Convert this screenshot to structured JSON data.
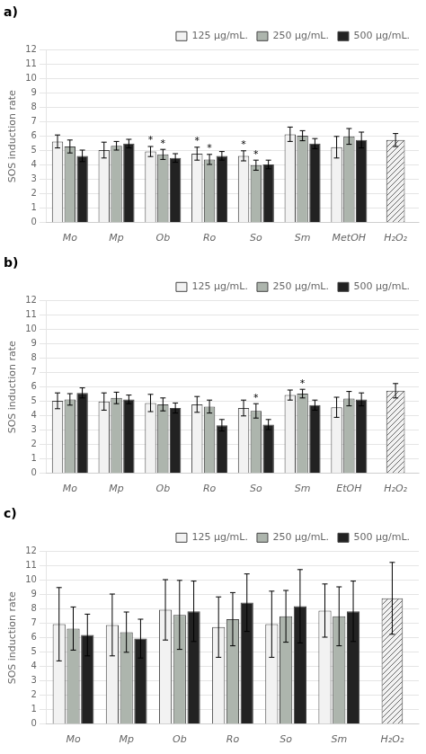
{
  "chart_data": [
    {
      "type": "bar",
      "title": "a)",
      "categories": [
        "Mo",
        "Mp",
        "Ob",
        "Ro",
        "So",
        "Sm",
        "MetOH",
        "H₂O₂"
      ],
      "series": [
        {
          "name": "125 μg/mL.",
          "color": "#f2f2f2",
          "values": [
            5.65,
            5.05,
            4.95,
            4.8,
            4.65,
            6.15,
            5.25,
            null
          ],
          "errors": [
            0.45,
            0.55,
            0.35,
            0.45,
            0.35,
            0.5,
            0.75,
            null
          ],
          "annotations": [
            null,
            null,
            "*",
            "*",
            "*",
            null,
            null,
            null
          ]
        },
        {
          "name": "250 μg/mL.",
          "color": "#adb5ad",
          "values": [
            5.3,
            5.35,
            4.75,
            4.4,
            4.0,
            6.05,
            6.0,
            null
          ],
          "errors": [
            0.45,
            0.3,
            0.35,
            0.35,
            0.35,
            0.35,
            0.55,
            null
          ],
          "annotations": [
            null,
            null,
            "*",
            "*",
            "*",
            null,
            null,
            null
          ]
        },
        {
          "name": "500 μg/mL.",
          "color": "#222222",
          "values": [
            4.65,
            5.5,
            4.5,
            4.65,
            4.05,
            5.5,
            5.75,
            null
          ],
          "errors": [
            0.4,
            0.3,
            0.3,
            0.3,
            0.3,
            0.35,
            0.55,
            null
          ]
        },
        {
          "color": "#f2f2f2",
          "values": [
            null,
            null,
            null,
            null,
            null,
            null,
            null,
            5.75
          ],
          "errors": [
            null,
            null,
            null,
            null,
            null,
            null,
            null,
            0.45
          ]
        }
      ],
      "ylabel": "SOS induction rate",
      "ylim": [
        0,
        12
      ],
      "yticks": [
        0,
        1,
        2,
        3,
        4,
        5,
        6,
        7,
        8,
        9,
        10,
        11,
        12
      ],
      "grid": true,
      "legend": "upper right"
    },
    {
      "type": "bar",
      "title": "b)",
      "categories": [
        "Mo",
        "Mp",
        "Ob",
        "Ro",
        "So",
        "Sm",
        "EtOH",
        "H₂O₂"
      ],
      "series": [
        {
          "name": "125 μg/mL.",
          "color": "#f2f2f2",
          "values": [
            5.05,
            5.0,
            4.9,
            4.8,
            4.55,
            5.45,
            4.6,
            null
          ],
          "errors": [
            0.55,
            0.6,
            0.6,
            0.55,
            0.55,
            0.35,
            0.7,
            null
          ]
        },
        {
          "name": "250 μg/mL.",
          "color": "#adb5ad",
          "values": [
            5.15,
            5.25,
            4.8,
            4.65,
            4.35,
            5.55,
            5.2,
            null
          ],
          "errors": [
            0.4,
            0.4,
            0.45,
            0.45,
            0.5,
            0.3,
            0.5,
            null
          ],
          "annotations": [
            null,
            null,
            null,
            null,
            "*",
            "*",
            null,
            null
          ]
        },
        {
          "name": "500 μg/mL.",
          "color": "#222222",
          "values": [
            5.6,
            5.15,
            4.55,
            3.35,
            3.4,
            4.75,
            5.15,
            null
          ],
          "errors": [
            0.35,
            0.3,
            0.35,
            0.4,
            0.35,
            0.35,
            0.45,
            null
          ]
        },
        {
          "color": "#f2f2f2",
          "values": [
            null,
            null,
            null,
            null,
            null,
            null,
            null,
            5.75
          ],
          "errors": [
            null,
            null,
            null,
            null,
            null,
            null,
            null,
            0.5
          ]
        }
      ],
      "ylabel": "SOS induction rate",
      "ylim": [
        0,
        12
      ],
      "yticks": [
        0,
        1,
        2,
        3,
        4,
        5,
        6,
        7,
        8,
        9,
        10,
        11,
        12
      ],
      "grid": true,
      "legend": "upper right"
    },
    {
      "type": "bar",
      "title": "c)",
      "categories": [
        "Mo",
        "Mp",
        "Ob",
        "Ro",
        "So",
        "Sm",
        "H₂O₂"
      ],
      "series": [
        {
          "name": "125 μg/mL.",
          "color": "#f2f2f2",
          "values": [
            6.95,
            6.9,
            7.95,
            6.75,
            6.95,
            7.9,
            null
          ],
          "errors": [
            2.55,
            2.15,
            2.1,
            2.1,
            2.3,
            1.85,
            null
          ]
        },
        {
          "name": "250 μg/mL.",
          "color": "#adb5ad",
          "values": [
            6.65,
            6.4,
            7.6,
            7.3,
            7.5,
            7.5,
            null
          ],
          "errors": [
            1.5,
            1.4,
            2.4,
            1.85,
            1.8,
            2.05,
            null
          ]
        },
        {
          "name": "500 μg/mL.",
          "color": "#222222",
          "values": [
            6.2,
            5.95,
            7.85,
            8.45,
            8.2,
            7.85,
            null
          ],
          "errors": [
            1.45,
            1.35,
            2.1,
            2.0,
            2.55,
            2.1,
            null
          ]
        },
        {
          "color": "#f2f2f2",
          "values": [
            null,
            null,
            null,
            null,
            null,
            null,
            8.75
          ],
          "errors": [
            null,
            null,
            null,
            null,
            null,
            null,
            2.5
          ]
        }
      ],
      "ylabel": "SOS induction rate",
      "ylim": [
        0,
        12
      ],
      "yticks": [
        0,
        1,
        2,
        3,
        4,
        5,
        6,
        7,
        8,
        9,
        10,
        11,
        12
      ],
      "grid": true,
      "legend": "upper right"
    }
  ]
}
